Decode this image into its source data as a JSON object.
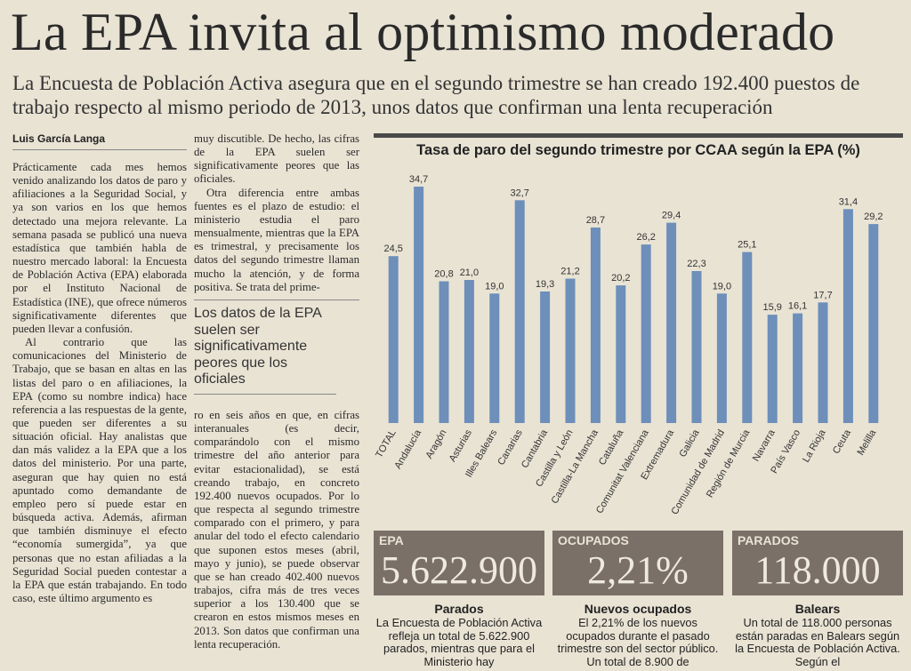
{
  "headline": "La EPA invita al optimismo moderado",
  "deck": "La Encuesta de Población Activa asegura que en el segundo trimestre se han creado 192.400 puestos de trabajo respecto al mismo periodo de 2013, unos datos que confirman una lenta recuperación",
  "byline": "Luis García Langa",
  "column1": [
    "Prácticamente cada mes hemos venido analizando los datos de paro y afiliaciones a la Seguridad Social, y ya son varios en los que hemos detectado una mejora relevante. La semana pasada se publicó una nueva estadística que también habla de nuestro mercado laboral: la Encuesta de Población Activa (EPA) elaborada por el Instituto Nacional de Estadística (INE), que ofrece números significativamente diferentes que pueden llevar a confusión.",
    "Al contrario que las comunicaciones del Ministerio de Trabajo, que se basan en altas en las listas del paro o en afiliaciones, la EPA (como su nombre indica) hace referencia a las respuestas de la gente, que pueden ser diferentes a su situación oficial. Hay analistas que dan más validez a la EPA que a los datos del ministerio. Por una parte, aseguran que hay quien no está apuntado como demandante de empleo pero sí puede estar en búsqueda activa. Además, afirman que también disminuye el efecto “economía sumergida”, ya que personas que no estan afiliadas a la Seguridad Social pueden contestar a la EPA que están trabajando. En todo caso, este último argumento es"
  ],
  "column2_top": [
    "muy discutible. De hecho, las cifras de la EPA suelen ser significativamente peores que las oficiales.",
    "Otra diferencia entre ambas fuentes es el plazo de estudio: el ministerio estudia el paro mensualmente, mientras que la EPA es trimestral, y precisamente los datos del segundo trimestre llaman mucho la atención, y de forma positiva. Se trata del prime-"
  ],
  "pullquote": "Los datos de la EPA suelen ser significativamente peores que los oficiales",
  "column2_bottom": [
    "ro en seis años en que, en cifras interanuales (es decir, comparándolo con el mismo trimestre del año anterior para evitar estacionalidad), se está creando trabajo, en concreto 192.400 nuevos ocupados. Por lo que respecta al segundo trimestre comparado con el primero, y para anular del todo el efecto calendario que suponen estos meses (abril, mayo y junio), se puede observar que se han creado 402.400 nuevos trabajos, cifra más de tres veces superior a los 130.400 que se crearon en estos mismos meses en 2013. Son datos que confirman una lenta recuperación."
  ],
  "chart_data": {
    "type": "bar",
    "title": "Tasa de paro del segundo trimestre por CCAA según la EPA (%)",
    "categories": [
      "TOTAL",
      "Andalucía",
      "Aragón",
      "Asturias",
      "Illes Balears",
      "Canarias",
      "Cantabria",
      "Castilla y León",
      "Castilla-La Mancha",
      "Cataluña",
      "Comunitat Valenciana",
      "Extremadura",
      "Galicia",
      "Comunidad de Madrid",
      "Región de Murcia",
      "Navarra",
      "País Vasco",
      "La Rioja",
      "Ceuta",
      "Melilla"
    ],
    "values": [
      24.5,
      34.7,
      20.8,
      21.0,
      19.0,
      32.7,
      19.3,
      21.2,
      28.7,
      20.2,
      26.2,
      29.4,
      22.3,
      19.0,
      25.1,
      15.9,
      16.1,
      17.7,
      31.4,
      29.2
    ],
    "value_labels": [
      "24,5",
      "34,7",
      "20,8",
      "21,0",
      "19,0",
      "32,7",
      "19,3",
      "21,2",
      "28,7",
      "20,2",
      "26,2",
      "29,4",
      "22,3",
      "19,0",
      "25,1",
      "15,9",
      "16,1",
      "17,7",
      "31,4",
      "29,2"
    ],
    "ylim": [
      0,
      36
    ],
    "grid": false,
    "bar_color": "#6d8fba"
  },
  "boxes": [
    {
      "label": "EPA",
      "value": "5.622.900",
      "title": "Parados",
      "text": "La Encuesta de Población Activa refleja un total de 5.622.900 parados, mientras que para el Ministerio hay"
    },
    {
      "label": "OCUPADOS",
      "value": "2,21%",
      "title": "Nuevos ocupados",
      "text": "El 2,21% de los nuevos ocupados durante el pasado trimestre son del sector público. Un total de 8.900 de"
    },
    {
      "label": "PARADOS",
      "value": "118.000",
      "title": "Balears",
      "text": "Un total de 118.000 personas están paradas en Balears según la Encuesta de Población Activa. Según el"
    }
  ]
}
